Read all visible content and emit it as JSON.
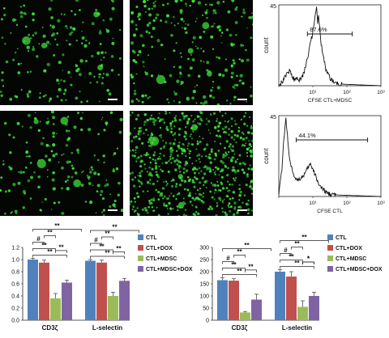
{
  "figure": {
    "micrographs": [
      {
        "id": "top-left",
        "scale_bar": true,
        "density": "sparse"
      },
      {
        "id": "top-middle",
        "scale_bar": true,
        "density": "medium"
      },
      {
        "id": "bottom-left",
        "scale_bar": true,
        "density": "sparse"
      },
      {
        "id": "bottom-middle",
        "scale_bar": true,
        "density": "dense"
      }
    ],
    "cell_color": "#3fe03a",
    "flow_histograms": [
      {
        "ylabel": "count",
        "gate_label": "87.6%",
        "xlabel": "CFSE  CTL+MDSC",
        "y_ticks": [
          "45"
        ],
        "x_ticks": [
          "0",
          "10¹",
          "10²",
          "10³"
        ],
        "y_max": 45
      },
      {
        "ylabel": "count",
        "gate_label": "44.1%",
        "xlabel": "CFSE  CTL",
        "y_ticks": [
          "45"
        ],
        "x_ticks": [
          "0",
          "10¹",
          "10²",
          "10³"
        ],
        "y_max": 45
      }
    ]
  },
  "chart_data": [
    {
      "type": "bar",
      "categories": [
        "CD3ζ",
        "L-selectin"
      ],
      "series": [
        {
          "name": "CTL",
          "values": [
            1.0,
            0.98
          ],
          "errors": [
            0.02,
            0.02
          ],
          "color": "#4f81bd"
        },
        {
          "name": "CTL+DOX",
          "values": [
            0.95,
            0.95
          ],
          "errors": [
            0.04,
            0.04
          ],
          "color": "#c0504d"
        },
        {
          "name": "CTL+MDSC",
          "values": [
            0.36,
            0.4
          ],
          "errors": [
            0.08,
            0.06
          ],
          "color": "#9bbb59"
        },
        {
          "name": "CTL+MDSC+DOX",
          "values": [
            0.62,
            0.65
          ],
          "errors": [
            0.04,
            0.04
          ],
          "color": "#8064a2"
        }
      ],
      "ylim": [
        0,
        1.2
      ],
      "y_ticks": [
        "0.0",
        "0.2",
        "0.4",
        "0.6",
        "0.8",
        "1.0",
        "1.2"
      ],
      "significance": [
        "**",
        "**",
        "**",
        "**",
        "#",
        "**"
      ]
    },
    {
      "type": "bar",
      "categories": [
        "CD3ζ",
        "L-selectin"
      ],
      "series": [
        {
          "name": "CTL",
          "values": [
            165,
            200
          ],
          "errors": [
            10,
            8
          ],
          "color": "#4f81bd"
        },
        {
          "name": "CTL+DOX",
          "values": [
            163,
            180
          ],
          "errors": [
            8,
            20
          ],
          "color": "#c0504d"
        },
        {
          "name": "CTL+MDSC",
          "values": [
            32,
            55
          ],
          "errors": [
            4,
            25
          ],
          "color": "#9bbb59"
        },
        {
          "name": "CTL+MDSC+DOX",
          "values": [
            85,
            100
          ],
          "errors": [
            22,
            15
          ],
          "color": "#8064a2"
        }
      ],
      "ylim": [
        0,
        300
      ],
      "y_ticks": [
        "0",
        "50",
        "100",
        "150",
        "200",
        "250",
        "300"
      ],
      "significance": [
        "**",
        "**",
        "**",
        "**",
        "#",
        "**",
        "*"
      ]
    }
  ]
}
